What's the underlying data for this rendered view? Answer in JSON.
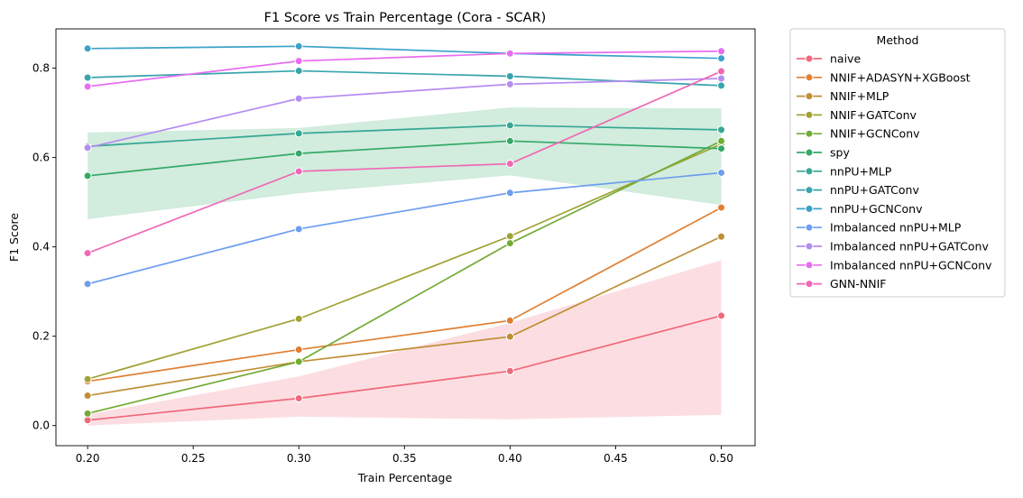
{
  "chart_data": {
    "type": "line",
    "title": "F1 Score vs Train Percentage (Cora - SCAR)",
    "xlabel": "Train Percentage",
    "ylabel": "F1 Score",
    "xlim": [
      0.185,
      0.516
    ],
    "ylim": [
      -0.045,
      0.888
    ],
    "x_ticks": [
      0.2,
      0.25,
      0.3,
      0.35,
      0.4,
      0.45,
      0.5
    ],
    "x_tick_labels": [
      "0.20",
      "0.25",
      "0.30",
      "0.35",
      "0.40",
      "0.45",
      "0.50"
    ],
    "y_ticks": [
      0.0,
      0.2,
      0.4,
      0.6,
      0.8
    ],
    "y_tick_labels": [
      "0.0",
      "0.2",
      "0.4",
      "0.6",
      "0.8"
    ],
    "grid": false,
    "legend_title": "Method",
    "legend_placement": "outside-right",
    "x": [
      0.2,
      0.3,
      0.4,
      0.5
    ],
    "series": [
      {
        "name": "naive",
        "color": "#f0697a",
        "values": [
          0.012,
          0.061,
          0.122,
          0.246
        ],
        "band": [
          [
            0.0,
            0.025
          ],
          [
            0.02,
            0.11
          ],
          [
            0.014,
            0.23
          ],
          [
            0.024,
            0.37
          ]
        ]
      },
      {
        "name": "NNIF+ADASYN+XGBoost",
        "color": "#e07f33",
        "values": [
          0.099,
          0.17,
          0.235,
          0.488
        ]
      },
      {
        "name": "NNIF+MLP",
        "color": "#bf8f35",
        "values": [
          0.067,
          0.143,
          0.199,
          0.423
        ]
      },
      {
        "name": "NNIF+GATConv",
        "color": "#a0a234",
        "values": [
          0.104,
          0.239,
          0.424,
          0.63
        ]
      },
      {
        "name": "NNIF+GCNConv",
        "color": "#73ab35",
        "values": [
          0.027,
          0.143,
          0.408,
          0.637
        ]
      },
      {
        "name": "spy",
        "color": "#33aa66",
        "values": [
          0.559,
          0.609,
          0.637,
          0.62
        ],
        "band": [
          [
            0.462,
            0.656
          ],
          [
            0.52,
            0.666
          ],
          [
            0.56,
            0.712
          ],
          [
            0.494,
            0.71
          ]
        ]
      },
      {
        "name": "nnPU+MLP",
        "color": "#35a794",
        "values": [
          0.625,
          0.654,
          0.672,
          0.662
        ]
      },
      {
        "name": "nnPU+GATConv",
        "color": "#38a4ac",
        "values": [
          0.779,
          0.794,
          0.782,
          0.761
        ]
      },
      {
        "name": "nnPU+GCNConv",
        "color": "#3ba2c9",
        "values": [
          0.844,
          0.849,
          0.833,
          0.822
        ]
      },
      {
        "name": "Imbalanced nnPU+MLP",
        "color": "#6d9ef0",
        "values": [
          0.317,
          0.44,
          0.521,
          0.566
        ]
      },
      {
        "name": "Imbalanced nnPU+GATConv",
        "color": "#b58cf0",
        "values": [
          0.622,
          0.732,
          0.764,
          0.777
        ]
      },
      {
        "name": "Imbalanced nnPU+GCNConv",
        "color": "#e76ef0",
        "values": [
          0.759,
          0.816,
          0.833,
          0.838
        ]
      },
      {
        "name": "GNN-NNIF",
        "color": "#f067b6",
        "values": [
          0.386,
          0.569,
          0.586,
          0.793
        ]
      }
    ]
  }
}
